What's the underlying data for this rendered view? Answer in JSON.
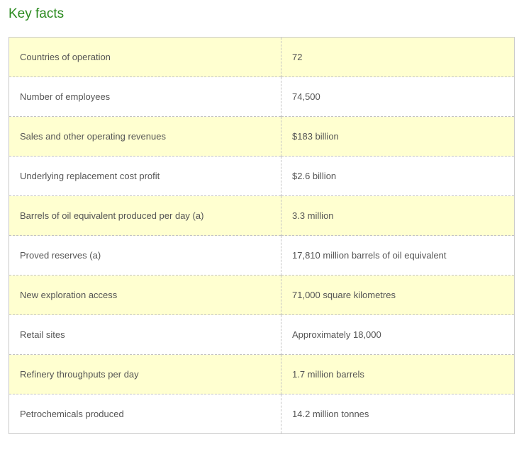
{
  "page": {
    "title": "Key facts"
  },
  "colors": {
    "heading": "#2a8a1e",
    "shaded_row": "#ffffd0",
    "text": "#555555",
    "border": "#c3c3c3"
  },
  "key_facts": {
    "rows": [
      {
        "label": "Countries of operation",
        "value": "72"
      },
      {
        "label": "Number of employees",
        "value": "74,500"
      },
      {
        "label": "Sales and other operating revenues",
        "value": "$183 billion"
      },
      {
        "label": "Underlying replacement cost profit",
        "value": "$2.6 billion"
      },
      {
        "label": "Barrels of oil equivalent produced per day (a)",
        "value": "3.3 million"
      },
      {
        "label": "Proved reserves (a)",
        "value": "17,810 million barrels of oil equivalent"
      },
      {
        "label": "New exploration access",
        "value": "71,000 square kilometres"
      },
      {
        "label": "Retail sites",
        "value": "Approximately 18,000"
      },
      {
        "label": "Refinery throughputs per day",
        "value": "1.7 million barrels"
      },
      {
        "label": "Petrochemicals produced",
        "value": "14.2 million tonnes"
      }
    ]
  }
}
